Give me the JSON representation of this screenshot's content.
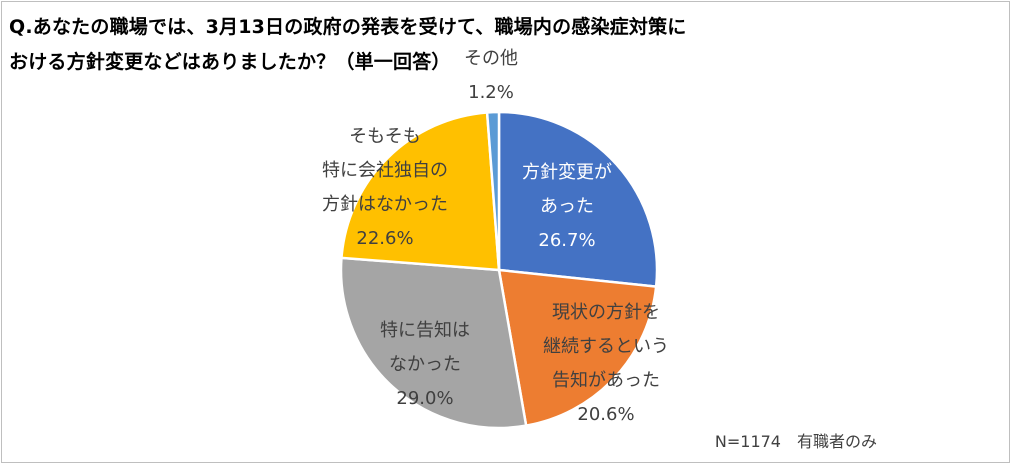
{
  "title_line1": "Q.あなたの職場では、3月13日の政府の発表を受けて、職場内の感染症対策に",
  "title_line2": "おける方針変更などはありましたか？（単一回答）",
  "sample_note": "N=1174　有職者のみ",
  "chart_data": {
    "type": "pie",
    "slices": [
      {
        "label_lines": [
          "方針変更が",
          "あった"
        ],
        "value": 26.7,
        "value_label": "26.7%",
        "color": "#4472c4",
        "text_color": "#ffffff"
      },
      {
        "label_lines": [
          "現状の方針を",
          "継続するという",
          "告知があった"
        ],
        "value": 20.6,
        "value_label": "20.6%",
        "color": "#ed7d31",
        "text_color": "#404040"
      },
      {
        "label_lines": [
          "特に告知は",
          "なかった"
        ],
        "value": 29.0,
        "value_label": "29.0%",
        "color": "#a5a5a5",
        "text_color": "#404040"
      },
      {
        "label_lines": [
          "そもそも",
          "特に会社独自の",
          "方針はなかった"
        ],
        "value": 22.6,
        "value_label": "22.6%",
        "color": "#ffc000",
        "text_color": "#404040"
      },
      {
        "label_lines": [
          "その他"
        ],
        "value": 1.2,
        "value_label": "1.2%",
        "color": "#5b9bd5",
        "text_color": "#404040"
      }
    ]
  }
}
